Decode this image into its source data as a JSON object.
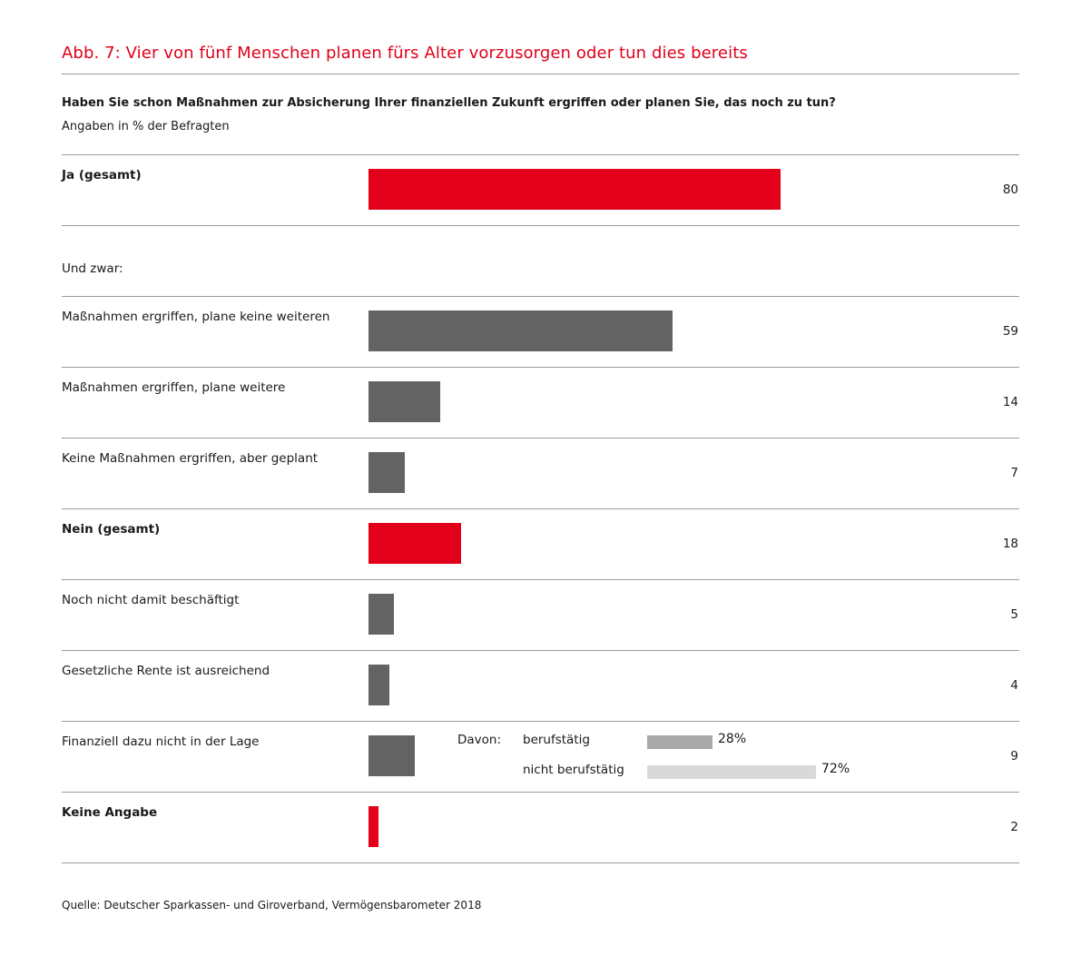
{
  "title": "Abb. 7: Vier von fünf Menschen planen fürs Alter vorzusorgen oder tun dies bereits",
  "question": "Haben Sie schon Maßnahmen zur Absicherung Ihrer finanziellen Zukunft ergriffen oder planen Sie, das noch zu tun?",
  "unit_note": "Angaben in % der Befragten",
  "subheading": "Und zwar:",
  "source": "Quelle: Deutscher Sparkassen- und Giroverband, Vermögensbarometer 2018",
  "colors": {
    "accent": "#e2001a",
    "bar_grey": "#636363",
    "sub_bar_1": "#a9a9a9",
    "sub_bar_2": "#d9d9d9"
  },
  "chart_data": {
    "type": "bar",
    "orientation": "horizontal",
    "title": "Abb. 7: Vier von fünf Menschen planen fürs Alter vorzusorgen oder tun dies bereits",
    "unit": "%",
    "xlim": [
      0,
      100
    ],
    "grid": false,
    "categories": [
      "Ja (gesamt)",
      "Maßnahmen ergriffen, plane keine weiteren",
      "Maßnahmen ergriffen, plane weitere",
      "Keine Maßnahmen ergriffen, aber geplant",
      "Nein (gesamt)",
      "Noch nicht damit beschäftigt",
      "Gesetzliche Rente ist ausreichend",
      "Finanziell dazu nicht in der Lage",
      "Keine Angabe"
    ],
    "values": [
      80,
      59,
      14,
      7,
      18,
      5,
      4,
      9,
      2
    ],
    "value_labels": [
      "80",
      "59",
      "14",
      "7",
      "18",
      "5",
      "4",
      "9",
      "2"
    ],
    "highlight": [
      true,
      false,
      false,
      false,
      true,
      false,
      false,
      false,
      true
    ],
    "breakdown": {
      "category": "Finanziell dazu nicht in der Lage",
      "label": "Davon:",
      "items": [
        {
          "name": "berufstätig",
          "value": 28,
          "value_label": "28%"
        },
        {
          "name": "nicht berufstätig",
          "value": 72,
          "value_label": "72%"
        }
      ]
    }
  }
}
